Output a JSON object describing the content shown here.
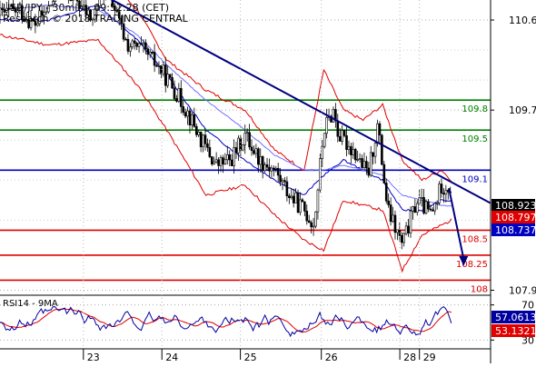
{
  "header": {
    "line1": "USD/JPY - 30min - 09:52:28 (CET)",
    "line2": "Research © 2018 TRADING CENTRAL"
  },
  "chart_data": [
    {
      "type": "candlestick",
      "pair": "USD/JPY",
      "timeframe": "30min",
      "y_range": [
        107.85,
        110.8
      ],
      "y_ticks": [
        {
          "value": 110.6,
          "label": "110.6"
        },
        {
          "value": 109.7,
          "label": "109.7"
        },
        {
          "value": 107.9,
          "label": "107.9"
        }
      ],
      "x_ticks": [
        "23",
        "24",
        "25",
        "26",
        "28",
        "29"
      ],
      "levels": [
        {
          "label": "109.8",
          "value": 109.8,
          "color": "#008000"
        },
        {
          "label": "109.5",
          "value": 109.5,
          "color": "#008000"
        },
        {
          "label": "109.1",
          "value": 109.1,
          "color": "#0000c0"
        },
        {
          "label": "108.5",
          "value": 108.5,
          "color": "#e00000"
        },
        {
          "label": "108.25",
          "value": 108.25,
          "color": "#e00000"
        },
        {
          "label": "108",
          "value": 108.0,
          "color": "#e00000"
        }
      ],
      "price_tags": [
        {
          "label": "108.923",
          "value": 108.923,
          "color": "#000000"
        },
        {
          "label": "108.797",
          "value": 108.797,
          "color": "#e00000"
        },
        {
          "label": "108.737",
          "value": 108.737,
          "color": "#0000c0"
        }
      ],
      "trendline": [
        {
          "x_frac": 0.21,
          "y": 110.85
        },
        {
          "x_frac": 1.0,
          "y": 108.77
        }
      ],
      "projection": [
        {
          "x_frac": 0.915,
          "y": 108.92
        },
        {
          "x_frac": 0.945,
          "y": 108.16
        }
      ],
      "price_path": [
        [
          0.0,
          110.65
        ],
        [
          0.04,
          110.7
        ],
        [
          0.07,
          110.55
        ],
        [
          0.1,
          110.72
        ],
        [
          0.12,
          110.9
        ],
        [
          0.15,
          110.85
        ],
        [
          0.17,
          110.7
        ],
        [
          0.19,
          110.6
        ],
        [
          0.2,
          110.8
        ],
        [
          0.22,
          110.95
        ],
        [
          0.24,
          110.6
        ],
        [
          0.26,
          110.35
        ],
        [
          0.29,
          110.3
        ],
        [
          0.32,
          110.15
        ],
        [
          0.35,
          109.95
        ],
        [
          0.38,
          109.7
        ],
        [
          0.41,
          109.4
        ],
        [
          0.44,
          109.15
        ],
        [
          0.47,
          109.2
        ],
        [
          0.5,
          109.45
        ],
        [
          0.53,
          109.2
        ],
        [
          0.56,
          109.1
        ],
        [
          0.59,
          108.85
        ],
        [
          0.62,
          108.7
        ],
        [
          0.64,
          108.55
        ],
        [
          0.66,
          109.5
        ],
        [
          0.68,
          109.7
        ],
        [
          0.69,
          109.45
        ],
        [
          0.72,
          109.3
        ],
        [
          0.75,
          109.05
        ],
        [
          0.77,
          109.55
        ],
        [
          0.79,
          108.7
        ],
        [
          0.82,
          108.35
        ],
        [
          0.85,
          108.8
        ],
        [
          0.88,
          108.65
        ],
        [
          0.9,
          108.95
        ],
        [
          0.92,
          108.92
        ]
      ],
      "bands": {
        "upper": [
          [
            0.0,
            110.85
          ],
          [
            0.1,
            110.85
          ],
          [
            0.2,
            111.1
          ],
          [
            0.28,
            110.7
          ],
          [
            0.34,
            110.2
          ],
          [
            0.42,
            109.9
          ],
          [
            0.5,
            109.7
          ],
          [
            0.56,
            109.3
          ],
          [
            0.62,
            109.1
          ],
          [
            0.66,
            110.1
          ],
          [
            0.7,
            109.7
          ],
          [
            0.74,
            109.6
          ],
          [
            0.78,
            109.75
          ],
          [
            0.82,
            109.2
          ],
          [
            0.86,
            109.0
          ],
          [
            0.9,
            109.1
          ],
          [
            0.92,
            109.0
          ]
        ],
        "lower": [
          [
            0.0,
            110.45
          ],
          [
            0.1,
            110.35
          ],
          [
            0.2,
            110.4
          ],
          [
            0.28,
            109.95
          ],
          [
            0.34,
            109.5
          ],
          [
            0.42,
            108.85
          ],
          [
            0.5,
            108.95
          ],
          [
            0.56,
            108.65
          ],
          [
            0.62,
            108.4
          ],
          [
            0.66,
            108.3
          ],
          [
            0.7,
            108.8
          ],
          [
            0.74,
            108.75
          ],
          [
            0.78,
            108.7
          ],
          [
            0.82,
            108.1
          ],
          [
            0.86,
            108.45
          ],
          [
            0.9,
            108.55
          ],
          [
            0.92,
            108.6
          ]
        ],
        "mid": [
          [
            0.0,
            110.6
          ],
          [
            0.1,
            110.6
          ],
          [
            0.2,
            110.75
          ],
          [
            0.28,
            110.4
          ],
          [
            0.34,
            110.05
          ],
          [
            0.42,
            109.5
          ],
          [
            0.5,
            109.2
          ],
          [
            0.56,
            109.0
          ],
          [
            0.62,
            108.85
          ],
          [
            0.66,
            109.05
          ],
          [
            0.7,
            109.2
          ],
          [
            0.74,
            109.1
          ],
          [
            0.78,
            109.0
          ],
          [
            0.82,
            108.7
          ],
          [
            0.86,
            108.7
          ],
          [
            0.9,
            108.8
          ],
          [
            0.92,
            108.79
          ]
        ]
      },
      "moving_average": [
        [
          0.0,
          110.7
        ],
        [
          0.1,
          110.75
        ],
        [
          0.2,
          110.7
        ],
        [
          0.28,
          110.45
        ],
        [
          0.34,
          110.15
        ],
        [
          0.42,
          109.8
        ],
        [
          0.5,
          109.5
        ],
        [
          0.56,
          109.25
        ],
        [
          0.62,
          109.1
        ],
        [
          0.66,
          109.1
        ],
        [
          0.7,
          109.15
        ],
        [
          0.74,
          109.1
        ],
        [
          0.78,
          109.05
        ],
        [
          0.82,
          108.85
        ],
        [
          0.86,
          108.8
        ],
        [
          0.9,
          108.75
        ],
        [
          0.92,
          108.74
        ]
      ]
    },
    {
      "type": "line",
      "title": "RSI14 - 9MA",
      "y_range": [
        20,
        80
      ],
      "y_ticks": [
        {
          "value": 70,
          "label": "70"
        },
        {
          "value": 30,
          "label": "30"
        }
      ],
      "series": [
        {
          "name": "RSI14",
          "color": "#0000a0"
        },
        {
          "name": "9MA",
          "color": "#e00000"
        }
      ],
      "value_tags": [
        {
          "label": "57.0613",
          "value": 57.0613,
          "color": "#0000a0"
        },
        {
          "label": "53.1321",
          "value": 53.1321,
          "color": "#e00000"
        }
      ]
    }
  ]
}
